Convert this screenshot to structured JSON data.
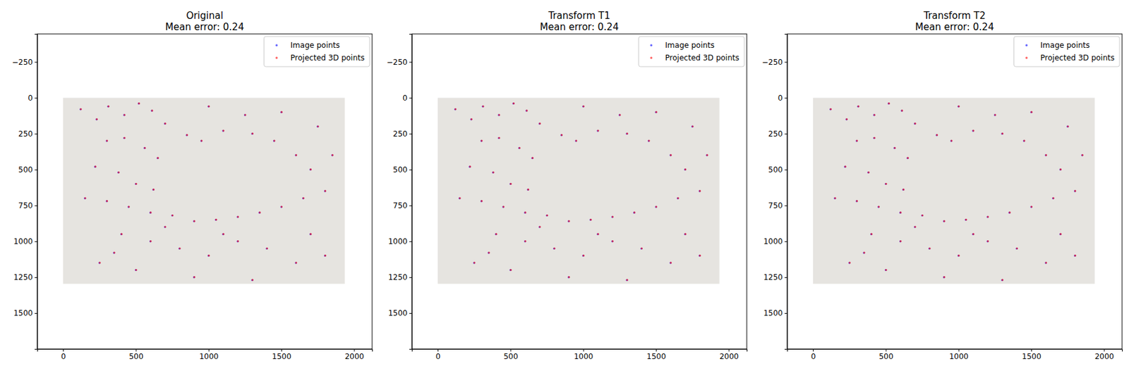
{
  "chart_data": [
    {
      "type": "scatter",
      "title": "Original",
      "subtitle": "Mean error: 0.24",
      "xlim": [
        -178,
        2124
      ],
      "ylim": [
        1750,
        -445
      ],
      "xticks": [
        0,
        500,
        1000,
        1500,
        2000
      ],
      "yticks": [
        {
          "value": -250,
          "label": "−250"
        },
        0,
        250,
        500,
        750,
        1000,
        1250,
        1500
      ],
      "image_xlim": [
        0,
        1936
      ],
      "image_ylim": [
        0,
        1296
      ],
      "legend": "upper right",
      "grid": false,
      "series": [
        {
          "name": "Image points",
          "color": "#0000ff",
          "marker": "o",
          "x": [
            120,
            230,
            310,
            420,
            520,
            610,
            700,
            300,
            420,
            560,
            650,
            220,
            380,
            500,
            620,
            150,
            300,
            450,
            600,
            750,
            900,
            1050,
            1200,
            1350,
            1500,
            1650,
            1800,
            1700,
            1600,
            1450,
            1300,
            1100,
            950,
            850,
            1000,
            1250,
            1500,
            1750,
            1850,
            400,
            600,
            800,
            1000,
            1200,
            1400,
            1600,
            1800,
            500,
            900,
            1300,
            700,
            1100,
            1700,
            250,
            350
          ],
          "values": [
            80,
            150,
            60,
            120,
            40,
            90,
            180,
            300,
            280,
            350,
            420,
            480,
            520,
            600,
            640,
            700,
            720,
            760,
            800,
            820,
            860,
            850,
            830,
            800,
            760,
            700,
            650,
            500,
            400,
            300,
            250,
            230,
            300,
            260,
            60,
            120,
            100,
            200,
            400,
            950,
            1000,
            1050,
            1100,
            1000,
            1050,
            1150,
            1100,
            1200,
            1250,
            1270,
            900,
            950,
            950,
            1150,
            1080
          ]
        },
        {
          "name": "Projected 3D points",
          "color": "#ff0000",
          "marker": "o",
          "x": [
            122,
            232,
            312,
            422,
            522,
            612,
            702,
            302,
            422,
            562,
            652,
            222,
            382,
            502,
            622,
            152,
            302,
            452,
            602,
            752,
            902,
            1052,
            1202,
            1352,
            1502,
            1652,
            1802,
            1702,
            1602,
            1452,
            1302,
            1102,
            952,
            852,
            1002,
            1252,
            1502,
            1752,
            1852,
            402,
            602,
            802,
            1002,
            1202,
            1402,
            1602,
            1802,
            502,
            902,
            1302,
            702,
            1102,
            1702,
            252,
            352
          ],
          "values": [
            79,
            149,
            59,
            119,
            39,
            89,
            179,
            299,
            279,
            349,
            419,
            479,
            519,
            599,
            639,
            699,
            719,
            759,
            799,
            819,
            859,
            849,
            829,
            799,
            759,
            699,
            649,
            499,
            399,
            299,
            249,
            229,
            299,
            259,
            59,
            119,
            99,
            199,
            399,
            949,
            999,
            1049,
            1099,
            999,
            1049,
            1149,
            1099,
            1199,
            1249,
            1269,
            899,
            949,
            949,
            1149,
            1079
          ]
        }
      ]
    },
    {
      "type": "scatter",
      "title": "Transform T1",
      "subtitle": "Mean error: 0.24",
      "xlim": [
        -178,
        2124
      ],
      "ylim": [
        1750,
        -445
      ],
      "xticks": [
        0,
        500,
        1000,
        1500,
        2000
      ],
      "yticks": [
        {
          "value": -250,
          "label": "−250"
        },
        0,
        250,
        500,
        750,
        1000,
        1250,
        1500
      ],
      "image_xlim": [
        0,
        1936
      ],
      "image_ylim": [
        0,
        1296
      ],
      "legend": "upper right",
      "grid": false,
      "series": [
        {
          "name": "Image points",
          "color": "#0000ff",
          "marker": "o",
          "x": [
            120,
            230,
            310,
            420,
            520,
            610,
            700,
            300,
            420,
            560,
            650,
            220,
            380,
            500,
            620,
            150,
            300,
            450,
            600,
            750,
            900,
            1050,
            1200,
            1350,
            1500,
            1650,
            1800,
            1700,
            1600,
            1450,
            1300,
            1100,
            950,
            850,
            1000,
            1250,
            1500,
            1750,
            1850,
            400,
            600,
            800,
            1000,
            1200,
            1400,
            1600,
            1800,
            500,
            900,
            1300,
            700,
            1100,
            1700,
            250,
            350
          ],
          "values": [
            80,
            150,
            60,
            120,
            40,
            90,
            180,
            300,
            280,
            350,
            420,
            480,
            520,
            600,
            640,
            700,
            720,
            760,
            800,
            820,
            860,
            850,
            830,
            800,
            760,
            700,
            650,
            500,
            400,
            300,
            250,
            230,
            300,
            260,
            60,
            120,
            100,
            200,
            400,
            950,
            1000,
            1050,
            1100,
            1000,
            1050,
            1150,
            1100,
            1200,
            1250,
            1270,
            900,
            950,
            950,
            1150,
            1080
          ]
        },
        {
          "name": "Projected 3D points",
          "color": "#ff0000",
          "marker": "o",
          "x": [
            122,
            232,
            312,
            422,
            522,
            612,
            702,
            302,
            422,
            562,
            652,
            222,
            382,
            502,
            622,
            152,
            302,
            452,
            602,
            752,
            902,
            1052,
            1202,
            1352,
            1502,
            1652,
            1802,
            1702,
            1602,
            1452,
            1302,
            1102,
            952,
            852,
            1002,
            1252,
            1502,
            1752,
            1852,
            402,
            602,
            802,
            1002,
            1202,
            1402,
            1602,
            1802,
            502,
            902,
            1302,
            702,
            1102,
            1702,
            252,
            352
          ],
          "values": [
            79,
            149,
            59,
            119,
            39,
            89,
            179,
            299,
            279,
            349,
            419,
            479,
            519,
            599,
            639,
            699,
            719,
            759,
            799,
            819,
            859,
            849,
            829,
            799,
            759,
            699,
            649,
            499,
            399,
            299,
            249,
            229,
            299,
            259,
            59,
            119,
            99,
            199,
            399,
            949,
            999,
            1049,
            1099,
            999,
            1049,
            1149,
            1099,
            1199,
            1249,
            1269,
            899,
            949,
            949,
            1149,
            1079
          ]
        }
      ]
    },
    {
      "type": "scatter",
      "title": "Transform T2",
      "subtitle": "Mean error: 0.24",
      "xlim": [
        -178,
        2124
      ],
      "ylim": [
        1750,
        -445
      ],
      "xticks": [
        0,
        500,
        1000,
        1500,
        2000
      ],
      "yticks": [
        {
          "value": -250,
          "label": "−250"
        },
        0,
        250,
        500,
        750,
        1000,
        1250,
        1500
      ],
      "image_xlim": [
        0,
        1936
      ],
      "image_ylim": [
        0,
        1296
      ],
      "legend": "upper right",
      "grid": false,
      "series": [
        {
          "name": "Image points",
          "color": "#0000ff",
          "marker": "o",
          "x": [
            120,
            230,
            310,
            420,
            520,
            610,
            700,
            300,
            420,
            560,
            650,
            220,
            380,
            500,
            620,
            150,
            300,
            450,
            600,
            750,
            900,
            1050,
            1200,
            1350,
            1500,
            1650,
            1800,
            1700,
            1600,
            1450,
            1300,
            1100,
            950,
            850,
            1000,
            1250,
            1500,
            1750,
            1850,
            400,
            600,
            800,
            1000,
            1200,
            1400,
            1600,
            1800,
            500,
            900,
            1300,
            700,
            1100,
            1700,
            250,
            350
          ],
          "values": [
            80,
            150,
            60,
            120,
            40,
            90,
            180,
            300,
            280,
            350,
            420,
            480,
            520,
            600,
            640,
            700,
            720,
            760,
            800,
            820,
            860,
            850,
            830,
            800,
            760,
            700,
            650,
            500,
            400,
            300,
            250,
            230,
            300,
            260,
            60,
            120,
            100,
            200,
            400,
            950,
            1000,
            1050,
            1100,
            1000,
            1050,
            1150,
            1100,
            1200,
            1250,
            1270,
            900,
            950,
            950,
            1150,
            1080
          ]
        },
        {
          "name": "Projected 3D points",
          "color": "#ff0000",
          "marker": "o",
          "x": [
            122,
            232,
            312,
            422,
            522,
            612,
            702,
            302,
            422,
            562,
            652,
            222,
            382,
            502,
            622,
            152,
            302,
            452,
            602,
            752,
            902,
            1052,
            1202,
            1352,
            1502,
            1652,
            1802,
            1702,
            1602,
            1452,
            1302,
            1102,
            952,
            852,
            1002,
            1252,
            1502,
            1752,
            1852,
            402,
            602,
            802,
            1002,
            1202,
            1402,
            1602,
            1802,
            502,
            902,
            1302,
            702,
            1102,
            1702,
            252,
            352
          ],
          "values": [
            79,
            149,
            59,
            119,
            39,
            89,
            179,
            299,
            279,
            349,
            419,
            479,
            519,
            599,
            639,
            699,
            719,
            759,
            799,
            819,
            859,
            849,
            829,
            799,
            759,
            699,
            649,
            499,
            399,
            299,
            249,
            229,
            299,
            259,
            59,
            119,
            99,
            199,
            399,
            949,
            999,
            1049,
            1099,
            999,
            1049,
            1149,
            1099,
            1199,
            1249,
            1269,
            899,
            949,
            949,
            1149,
            1079
          ]
        }
      ]
    }
  ]
}
